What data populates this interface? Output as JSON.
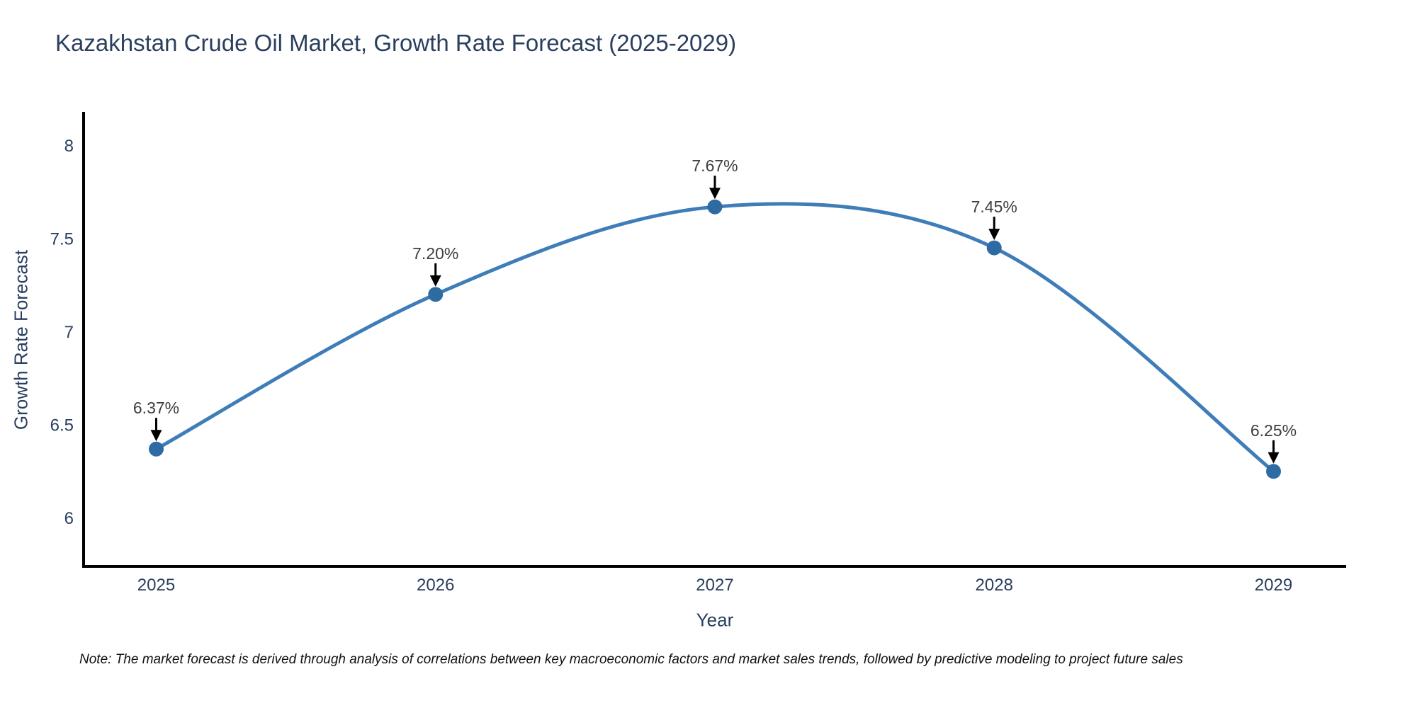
{
  "title": "Kazakhstan Crude Oil Market, Growth Rate Forecast (2025-2029)",
  "note": "Note: The market forecast is derived through analysis of correlations between key macroeconomic factors and market sales trends, followed by predictive modeling to project future sales",
  "chart_data": {
    "type": "line",
    "title": "Kazakhstan Crude Oil Market, Growth Rate Forecast (2025-2029)",
    "xlabel": "Year",
    "ylabel": "Growth Rate Forecast",
    "x": [
      2025,
      2026,
      2027,
      2028,
      2029
    ],
    "values": [
      6.37,
      7.2,
      7.67,
      7.45,
      6.25
    ],
    "point_labels": [
      "6.37%",
      "7.20%",
      "7.67%",
      "7.45%",
      "6.25%"
    ],
    "xtick_labels": [
      "2025",
      "2026",
      "2027",
      "2028",
      "2029"
    ],
    "yticks": [
      6,
      6.5,
      7,
      7.5,
      8
    ],
    "ytick_labels": [
      "6",
      "6.5",
      "7",
      "7.5",
      "8"
    ],
    "xlim": [
      2024.74,
      2029.26
    ],
    "ylim": [
      5.74,
      8.18
    ],
    "grid": false,
    "legend": "none",
    "line_shape": "spline",
    "annotation_arrows": true,
    "colors": {
      "line": "#3f7db8",
      "marker": "#2f6ba3",
      "axis": "#000000",
      "title_text": "#2a3f5f",
      "tick_text": "#2a3f5f",
      "annotation_text": "#3d3d3d",
      "arrow": "#000000",
      "background": "#ffffff"
    }
  }
}
